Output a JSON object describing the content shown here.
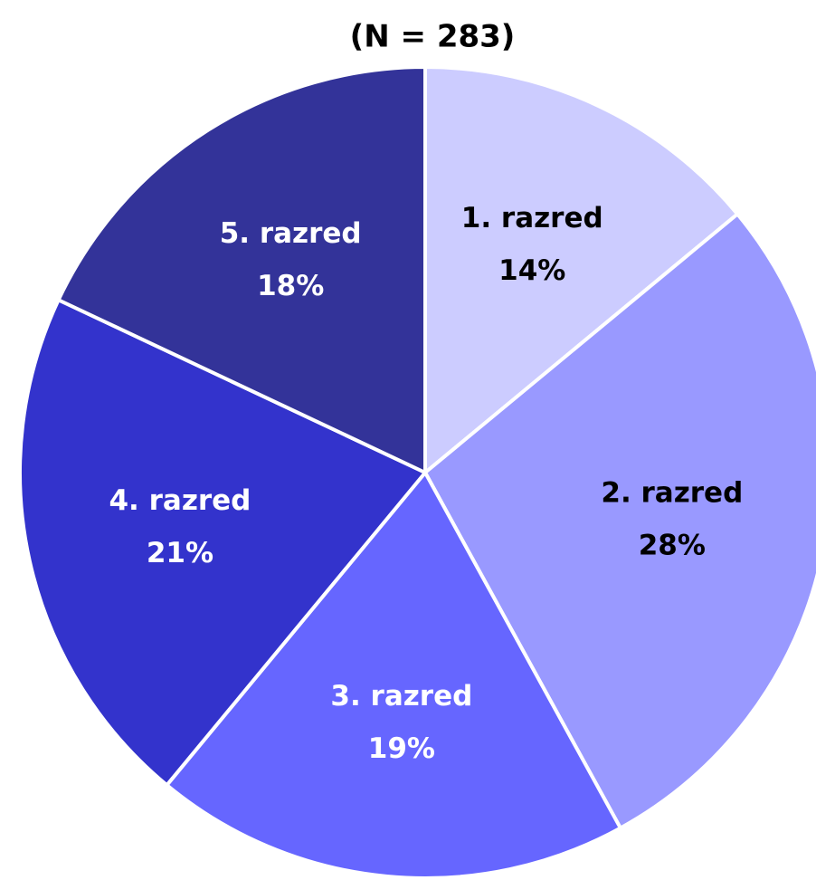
{
  "chart_data": {
    "type": "pie",
    "title": "(N = 283)",
    "categories": [
      "1. razred",
      "2. razred",
      "3. razred",
      "4. razred",
      "5. razred"
    ],
    "values": [
      14,
      28,
      19,
      21,
      18
    ],
    "value_labels": [
      "14%",
      "28%",
      "19%",
      "21%",
      "18%"
    ],
    "colors": [
      "#ccccff",
      "#9999ff",
      "#6666ff",
      "#3333cc",
      "#333399"
    ],
    "label_colors": [
      "#000000",
      "#000000",
      "#ffffff",
      "#ffffff",
      "#ffffff"
    ]
  }
}
